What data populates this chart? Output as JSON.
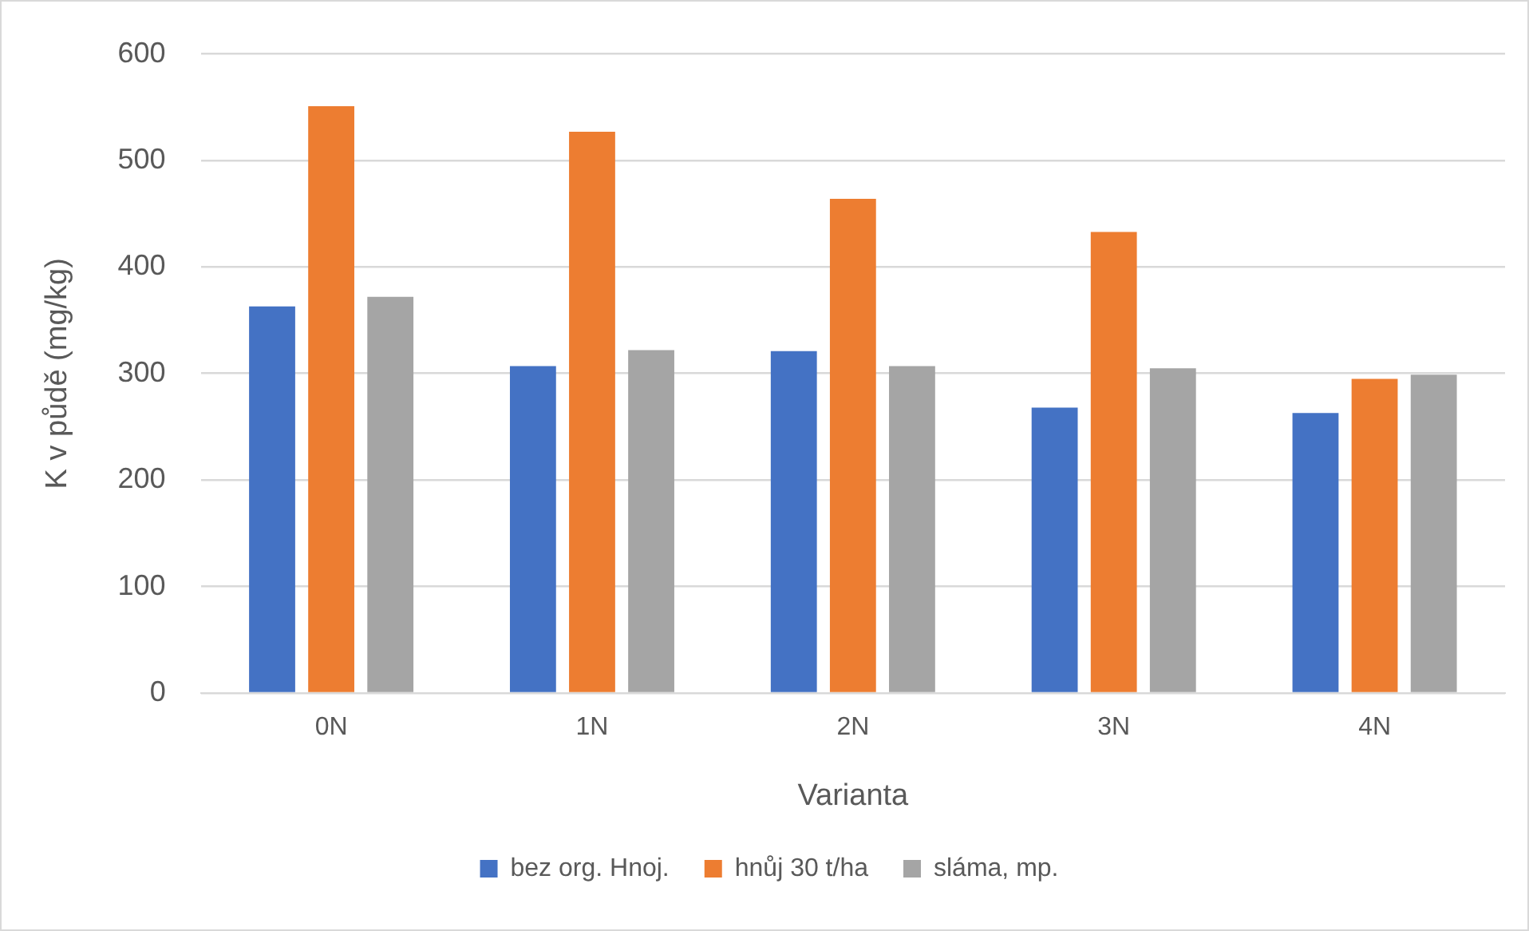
{
  "chart_data": {
    "type": "bar",
    "xlabel": "Varianta",
    "ylabel": "K v půdě (mg/kg)",
    "categories": [
      "0N",
      "1N",
      "2N",
      "3N",
      "4N"
    ],
    "series": [
      {
        "name": "bez org. Hnoj.",
        "color": "#4472c4",
        "values": [
          363,
          307,
          321,
          268,
          263
        ]
      },
      {
        "name": "hnůj 30 t/ha",
        "color": "#ed7d31",
        "values": [
          551,
          527,
          464,
          433,
          295
        ]
      },
      {
        "name": "sláma, mp.",
        "color": "#a5a5a5",
        "values": [
          372,
          322,
          307,
          305,
          299
        ]
      }
    ],
    "ylim": [
      0,
      600
    ],
    "yticks": [
      0,
      100,
      200,
      300,
      400,
      500,
      600
    ],
    "grid": "y",
    "legend": "bottom"
  }
}
